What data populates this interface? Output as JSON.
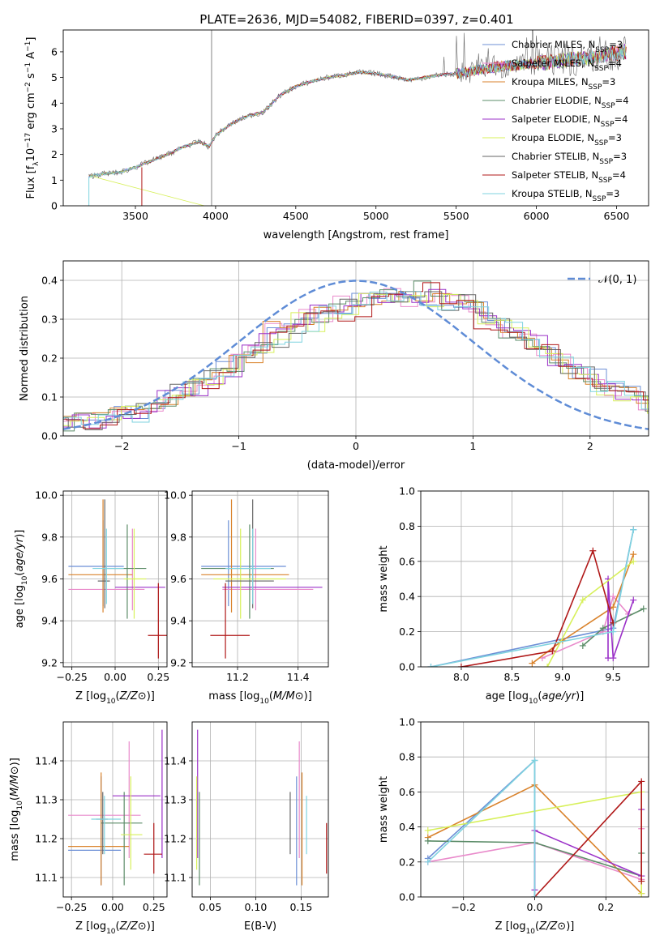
{
  "title": "PLATE=2636, MJD=54082, FIBERID=0397, z=0.401",
  "colors": {
    "chabrier_miles": "#6c8fd6",
    "salpeter_miles": "#e98acb",
    "kroupa_miles": "#d9822b",
    "chabrier_elodie": "#5b8c68",
    "salpeter_elodie": "#9b30c8",
    "kroupa_elodie": "#d7f05a",
    "chabrier_stelib": "#666666",
    "salpeter_stelib": "#b01818",
    "kroupa_stelib": "#7fd3df",
    "normal_curve": "#5f8cd6"
  },
  "chart_data": [
    {
      "id": "spectrum",
      "type": "line",
      "xlabel": "wavelength [Angstrom, rest frame]",
      "ylabel": "Flux [fλ10⁻¹⁷ erg cm⁻² s⁻¹ A⁻¹]",
      "xlim": [
        3050,
        6700
      ],
      "ylim": [
        0,
        6.85
      ],
      "xticks": [
        3500,
        4000,
        4500,
        5000,
        5500,
        6000,
        6500
      ],
      "yticks": [
        0,
        1,
        2,
        3,
        4,
        5,
        6
      ],
      "legend": "upper-right",
      "grid": false,
      "continuum_x": [
        3210,
        3300,
        3400,
        3500,
        3600,
        3700,
        3800,
        3900,
        3960,
        4000,
        4100,
        4200,
        4300,
        4400,
        4500,
        4600,
        4700,
        4800,
        4900,
        5000,
        5100,
        5200,
        5300,
        5400,
        5500,
        5600,
        5700,
        5800,
        5900,
        6000,
        6100,
        6200,
        6300,
        6400,
        6500,
        6560
      ],
      "continuum_y": [
        1.15,
        1.25,
        1.3,
        1.5,
        1.75,
        2.0,
        2.3,
        2.5,
        2.3,
        2.75,
        3.2,
        3.5,
        3.65,
        4.3,
        4.65,
        4.85,
        5.0,
        5.1,
        5.2,
        5.15,
        5.05,
        4.9,
        5.0,
        5.1,
        5.15,
        5.25,
        5.35,
        5.45,
        5.5,
        5.55,
        5.6,
        5.7,
        5.75,
        5.85,
        5.95,
        6.0
      ],
      "series": [
        {
          "name": "Chabrier MILES, N_SSP=3",
          "label_main": "Chabrier MILES, N",
          "label_sub": "SSP",
          "label_tail": "=3",
          "color_key": "chabrier_miles"
        },
        {
          "name": "Salpeter MILES, N_SSP=4",
          "label_main": "Salpeter MILES, N",
          "label_sub": "SSP",
          "label_tail": "=4",
          "color_key": "salpeter_miles"
        },
        {
          "name": "Kroupa MILES, N_SSP=3",
          "label_main": "Kroupa MILES, N",
          "label_sub": "SSP",
          "label_tail": "=3",
          "color_key": "kroupa_miles"
        },
        {
          "name": "Chabrier ELODIE, N_SSP=4",
          "label_main": "Chabrier ELODIE, N",
          "label_sub": "SSP",
          "label_tail": "=4",
          "color_key": "chabrier_elodie"
        },
        {
          "name": "Salpeter ELODIE, N_SSP=4",
          "label_main": "Salpeter ELODIE, N",
          "label_sub": "SSP",
          "label_tail": "=4",
          "color_key": "salpeter_elodie"
        },
        {
          "name": "Kroupa ELODIE, N_SSP=3",
          "label_main": "Kroupa ELODIE, N",
          "label_sub": "SSP",
          "label_tail": "=3",
          "color_key": "kroupa_elodie"
        },
        {
          "name": "Chabrier STELIB, N_SSP=3",
          "label_main": "Chabrier STELIB, N",
          "label_sub": "SSP",
          "label_tail": "=3",
          "color_key": "chabrier_stelib"
        },
        {
          "name": "Salpeter STELIB, N_SSP=4",
          "label_main": "Salpeter STELIB, N",
          "label_sub": "SSP",
          "label_tail": "=4",
          "color_key": "salpeter_stelib"
        },
        {
          "name": "Kroupa STELIB, N_SSP=3",
          "label_main": "Kroupa STELIB, N",
          "label_sub": "SSP",
          "label_tail": "=3",
          "color_key": "kroupa_stelib"
        }
      ]
    },
    {
      "id": "residuals",
      "type": "histogram",
      "xlabel": "(data-model)/error",
      "ylabel": "Normed distribution",
      "xlim": [
        -2.5,
        2.5
      ],
      "ylim": [
        0,
        0.45
      ],
      "xticks": [
        -2,
        -1,
        0,
        1,
        2
      ],
      "yticks": [
        0.0,
        0.1,
        0.2,
        0.3,
        0.4
      ],
      "grid": true,
      "legend": "upper-right",
      "legend_label": "𝒩(0, 1)",
      "bin_edges_start": -2.5,
      "bin_width": 0.1,
      "envelope": [
        0.035,
        0.035,
        0.04,
        0.045,
        0.055,
        0.06,
        0.075,
        0.085,
        0.095,
        0.11,
        0.12,
        0.13,
        0.15,
        0.17,
        0.19,
        0.21,
        0.24,
        0.26,
        0.27,
        0.285,
        0.3,
        0.31,
        0.315,
        0.33,
        0.34,
        0.345,
        0.36,
        0.36,
        0.355,
        0.36,
        0.355,
        0.35,
        0.345,
        0.33,
        0.32,
        0.3,
        0.29,
        0.27,
        0.26,
        0.235,
        0.215,
        0.2,
        0.18,
        0.165,
        0.15,
        0.13,
        0.12,
        0.105,
        0.09,
        0.08
      ]
    },
    {
      "id": "age-vs-Z",
      "type": "errorbar",
      "xlabel": "Z [log10(Z/Z⊙)]",
      "ylabel": "age  [log10(age/yr)]",
      "xlim": [
        -0.3,
        0.3
      ],
      "ylim": [
        9.18,
        10.02
      ],
      "xticks": [
        -0.25,
        0.0,
        0.25
      ],
      "yticks": [
        9.2,
        9.4,
        9.6,
        9.8,
        10.0
      ],
      "grid": true
    },
    {
      "id": "age-vs-mass",
      "type": "errorbar",
      "xlabel": "mass [log10(M/M⊙)]",
      "ylabel": "",
      "xlim": [
        11.05,
        11.5
      ],
      "ylim": [
        9.18,
        10.02
      ],
      "xticks": [
        11.2,
        11.4
      ],
      "yticks": [
        9.2,
        9.4,
        9.6,
        9.8,
        10.0
      ],
      "grid": true
    },
    {
      "id": "weight-vs-age",
      "type": "line",
      "xlabel": "age  [log10(age/yr)]",
      "ylabel": "mass weight",
      "xlim": [
        7.6,
        9.85
      ],
      "ylim": [
        0,
        1
      ],
      "xticks": [
        8.0,
        8.5,
        9.0,
        9.5
      ],
      "yticks": [
        0.0,
        0.2,
        0.4,
        0.6,
        0.8,
        1.0
      ],
      "grid": true
    },
    {
      "id": "mass-vs-Z",
      "type": "errorbar",
      "xlabel": "Z [log10(Z/Z⊙)]",
      "ylabel": "mass [log10(M/M⊙)]",
      "xlim": [
        -0.3,
        0.33
      ],
      "ylim": [
        11.05,
        11.5
      ],
      "xticks": [
        -0.25,
        0.0,
        0.25
      ],
      "yticks": [
        11.1,
        11.2,
        11.3,
        11.4
      ],
      "grid": true
    },
    {
      "id": "mass-vs-ebv",
      "type": "errorbar",
      "xlabel": "E(B-V)",
      "ylabel": "",
      "xlim": [
        0.03,
        0.18
      ],
      "ylim": [
        11.05,
        11.5
      ],
      "xticks": [
        0.05,
        0.1,
        0.15
      ],
      "yticks": [
        11.1,
        11.2,
        11.3,
        11.4
      ],
      "grid": true
    },
    {
      "id": "weight-vs-Z",
      "type": "line",
      "xlabel": "Z [log10(Z/Z⊙)]",
      "ylabel": "mass weight",
      "xlim": [
        -0.32,
        0.32
      ],
      "ylim": [
        0,
        1
      ],
      "xticks": [
        -0.2,
        0.0,
        0.2
      ],
      "yticks": [
        0.0,
        0.2,
        0.4,
        0.6,
        0.8,
        1.0
      ],
      "grid": true
    }
  ],
  "fits": [
    {
      "color_key": "chabrier_miles",
      "Z": -0.07,
      "Zlo": -0.27,
      "Zhi": 0.05,
      "age": 9.66,
      "agelo": 9.47,
      "agehi": 9.88,
      "mass": 11.17,
      "masslo": 11.08,
      "masshi": 11.36,
      "ebv": 0.145,
      "age_w": [
        [
          7.7,
          0.0
        ],
        [
          9.5,
          0.22
        ],
        [
          9.7,
          0.78
        ]
      ],
      "Z_w": [
        [
          -0.3,
          0.22
        ],
        [
          0.0,
          0.78
        ],
        [
          0.0,
          0.0
        ]
      ]
    },
    {
      "color_key": "salpeter_miles",
      "Z": 0.1,
      "Zlo": -0.27,
      "Zhi": 0.17,
      "age": 9.55,
      "agelo": 9.45,
      "agehi": 9.84,
      "mass": 11.26,
      "masslo": 11.15,
      "masshi": 11.45,
      "ebv": 0.148,
      "age_w": [
        [
          8.8,
          0.05
        ],
        [
          9.4,
          0.2
        ],
        [
          9.5,
          0.4
        ],
        [
          9.65,
          0.3
        ]
      ],
      "Z_w": [
        [
          -0.3,
          0.2
        ],
        [
          0.0,
          0.31
        ],
        [
          0.3,
          0.1
        ],
        [
          0.3,
          0.39
        ]
      ]
    },
    {
      "color_key": "kroupa_miles",
      "Z": -0.07,
      "Zlo": -0.27,
      "Zhi": 0.1,
      "age": 9.62,
      "agelo": 9.44,
      "agehi": 9.98,
      "mass": 11.18,
      "masslo": 11.08,
      "masshi": 11.37,
      "ebv": 0.151,
      "age_w": [
        [
          8.7,
          0.02
        ],
        [
          9.0,
          0.15
        ],
        [
          9.5,
          0.34
        ],
        [
          9.7,
          0.64
        ]
      ],
      "Z_w": [
        [
          -0.3,
          0.34
        ],
        [
          0.0,
          0.64
        ],
        [
          0.3,
          0.02
        ]
      ]
    },
    {
      "color_key": "chabrier_elodie",
      "Z": 0.07,
      "Zlo": -0.07,
      "Zhi": 0.18,
      "age": 9.65,
      "agelo": 9.41,
      "agehi": 9.86,
      "mass": 11.24,
      "masslo": 11.08,
      "masshi": 11.32,
      "ebv": 0.038,
      "age_w": [
        [
          9.2,
          0.12
        ],
        [
          9.4,
          0.22
        ],
        [
          9.8,
          0.33
        ]
      ],
      "Z_w": [
        [
          -0.3,
          0.32
        ],
        [
          0.0,
          0.31
        ],
        [
          0.3,
          0.12
        ],
        [
          0.3,
          0.25
        ]
      ]
    },
    {
      "color_key": "salpeter_elodie",
      "Z": 0.3,
      "Zlo": 0.0,
      "Zhi": 0.29,
      "age": 9.56,
      "agelo": 9.56,
      "agehi": 9.56,
      "mass": 11.31,
      "masslo": 11.15,
      "masshi": 11.48,
      "ebv": 0.036,
      "age_w": [
        [
          9.45,
          0.05
        ],
        [
          9.45,
          0.5
        ],
        [
          9.5,
          0.05
        ],
        [
          9.7,
          0.38
        ]
      ],
      "Z_w": [
        [
          0.0,
          0.04
        ],
        [
          0.0,
          0.38
        ],
        [
          0.3,
          0.12
        ],
        [
          0.3,
          0.5
        ]
      ]
    },
    {
      "color_key": "kroupa_elodie",
      "Z": 0.11,
      "Zlo": 0.05,
      "Zhi": 0.18,
      "age": 9.6,
      "agelo": 9.41,
      "agehi": 9.84,
      "mass": 11.21,
      "masslo": 11.12,
      "masshi": 11.36,
      "ebv": 0.035,
      "age_w": [
        [
          8.85,
          0.0
        ],
        [
          9.2,
          0.38
        ],
        [
          9.7,
          0.6
        ]
      ],
      "Z_w": [
        [
          -0.3,
          0.38
        ],
        [
          0.3,
          0.6
        ],
        [
          0.3,
          0.02
        ]
      ]
    },
    {
      "color_key": "chabrier_stelib",
      "Z": -0.06,
      "Zlo": -0.1,
      "Zhi": -0.03,
      "age": 9.59,
      "agelo": 9.46,
      "agehi": 9.98,
      "mass": 11.25,
      "masslo": 11.16,
      "masshi": 11.32,
      "ebv": 0.138,
      "age_w": [],
      "Z_w": []
    },
    {
      "color_key": "salpeter_stelib",
      "Z": 0.25,
      "Zlo": 0.19,
      "Zhi": 0.3,
      "age": 9.33,
      "agelo": 9.22,
      "agehi": 9.58,
      "mass": 11.16,
      "masslo": 11.11,
      "masshi": 11.24,
      "ebv": 0.178,
      "age_w": [
        [
          8.0,
          0.0
        ],
        [
          8.9,
          0.09
        ],
        [
          9.3,
          0.66
        ],
        [
          9.5,
          0.25
        ]
      ],
      "Z_w": [
        [
          0.0,
          0.0
        ],
        [
          0.3,
          0.66
        ],
        [
          0.3,
          0.09
        ]
      ]
    },
    {
      "color_key": "kroupa_stelib",
      "Z": -0.05,
      "Zlo": -0.13,
      "Zhi": 0.05,
      "age": 9.65,
      "agelo": 9.48,
      "agehi": 9.84,
      "mass": 11.25,
      "masslo": 11.16,
      "masshi": 11.31,
      "ebv": 0.156,
      "age_w": [
        [
          7.7,
          0.0
        ],
        [
          9.5,
          0.2
        ],
        [
          9.7,
          0.78
        ]
      ],
      "Z_w": [
        [
          -0.3,
          0.2
        ],
        [
          0.0,
          0.78
        ],
        [
          0.0,
          0.0
        ]
      ]
    }
  ]
}
